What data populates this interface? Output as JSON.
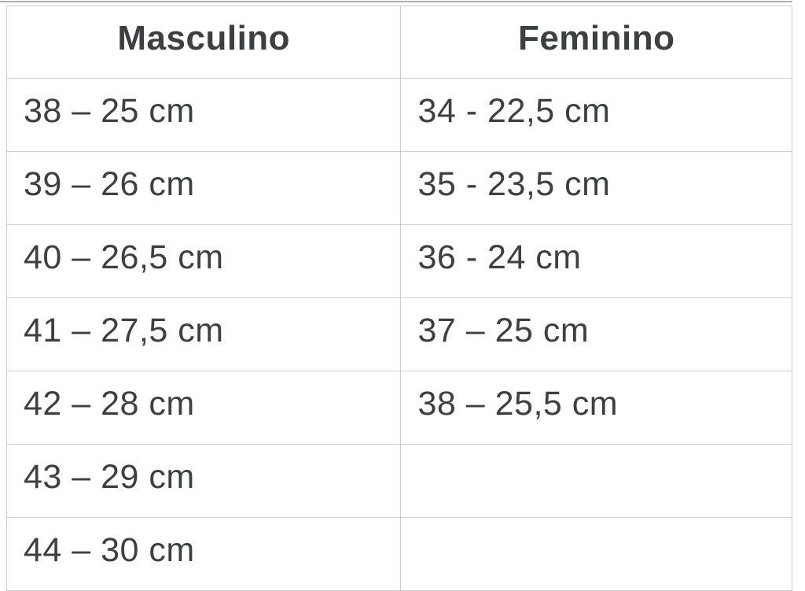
{
  "page": {
    "background_color": "#ffffff",
    "top_rule_color": "#aeaeae"
  },
  "table": {
    "text_color": "#3d4043",
    "border_color": "#cecece",
    "headers": [
      "Masculino",
      "Feminino"
    ],
    "rows": [
      [
        "38 – 25 cm",
        "34 - 22,5 cm"
      ],
      [
        "39 – 26 cm",
        "35 - 23,5 cm"
      ],
      [
        "40 – 26,5 cm",
        "36 - 24 cm"
      ],
      [
        "41 – 27,5 cm",
        "37 – 25 cm"
      ],
      [
        "42 – 28 cm",
        "38 – 25,5 cm"
      ],
      [
        "43 – 29 cm",
        ""
      ],
      [
        "44 – 30 cm",
        ""
      ]
    ]
  },
  "chart_data": {
    "type": "table",
    "columns": [
      "Masculino",
      "Feminino"
    ],
    "rows": [
      [
        "38 – 25 cm",
        "34 - 22,5 cm"
      ],
      [
        "39 – 26 cm",
        "35 - 23,5 cm"
      ],
      [
        "40 – 26,5 cm",
        "36 - 24 cm"
      ],
      [
        "41 – 27,5 cm",
        "37 – 25 cm"
      ],
      [
        "42 – 28 cm",
        "38 – 25,5 cm"
      ],
      [
        "43 – 29 cm",
        ""
      ],
      [
        "44 – 30 cm",
        ""
      ]
    ],
    "layout_hints": {
      "header_bold": true,
      "header_align": "center",
      "cell_align": "left",
      "grid": true
    }
  }
}
